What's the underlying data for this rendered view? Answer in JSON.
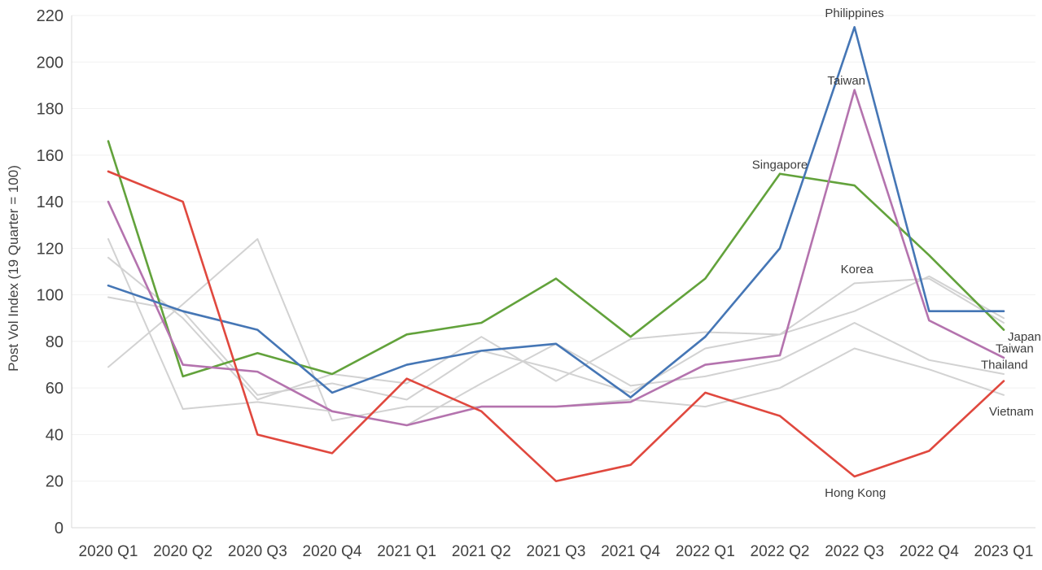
{
  "chart_data": {
    "type": "line",
    "title": "",
    "ylabel": "Post Vol Index (19 Quarter = 100)",
    "xlabel": "",
    "ylim": [
      0,
      227
    ],
    "y_ticks": [
      0,
      20,
      40,
      60,
      80,
      100,
      120,
      140,
      160,
      180,
      200,
      220
    ],
    "grid": "horizontal-faint",
    "legend_position": "none (direct line labels)",
    "categories": [
      "2020 Q1",
      "2020 Q2",
      "2020 Q3",
      "2020 Q4",
      "2021 Q1",
      "2021 Q2",
      "2021 Q3",
      "2021 Q4",
      "2022 Q1",
      "2022 Q2",
      "2022 Q3",
      "2022 Q4",
      "2023 Q1"
    ],
    "series": [
      {
        "name": "Japan",
        "color": "#d2d2d2",
        "emphasis": "background",
        "values": [
          116,
          90,
          55,
          66,
          62,
          82,
          63,
          81,
          84,
          83,
          93,
          108,
          90
        ]
      },
      {
        "name": "Korea",
        "color": "#d2d2d2",
        "emphasis": "background",
        "values": [
          99,
          93,
          57,
          62,
          55,
          76,
          68,
          58,
          77,
          83,
          105,
          107,
          88
        ]
      },
      {
        "name": "Thailand",
        "color": "#d2d2d2",
        "emphasis": "background",
        "values": [
          124,
          51,
          54,
          50,
          44,
          62,
          79,
          61,
          65,
          72,
          88,
          72,
          66
        ]
      },
      {
        "name": "Vietnam",
        "color": "#d2d2d2",
        "emphasis": "background",
        "values": [
          69,
          96,
          124,
          46,
          52,
          52,
          52,
          55,
          52,
          60,
          77,
          68,
          57
        ]
      },
      {
        "name": "Singapore",
        "color": "#62a23b",
        "emphasis": "highlight",
        "values": [
          166,
          65,
          75,
          66,
          83,
          88,
          107,
          82,
          107,
          152,
          147,
          117,
          85
        ]
      },
      {
        "name": "Taiwan",
        "color": "#b473ae",
        "emphasis": "highlight",
        "values": [
          140,
          70,
          67,
          50,
          44,
          52,
          52,
          54,
          70,
          74,
          188,
          89,
          73
        ]
      },
      {
        "name": "Philippines",
        "color": "#4576b5",
        "emphasis": "highlight",
        "values": [
          104,
          93,
          85,
          58,
          70,
          76,
          79,
          56,
          82,
          120,
          215,
          93,
          93
        ]
      },
      {
        "name": "Hong Kong",
        "color": "#e0483e",
        "emphasis": "highlight",
        "values": [
          153,
          140,
          40,
          32,
          64,
          50,
          20,
          27,
          58,
          48,
          22,
          33,
          63
        ]
      }
    ],
    "annotations": [
      {
        "text": "Philippines",
        "quarter_index": 10,
        "value": 221,
        "anchor": "middle",
        "dx": 0
      },
      {
        "text": "Taiwan",
        "quarter_index": 10,
        "value": 192,
        "anchor": "middle",
        "dx": -10
      },
      {
        "text": "Singapore",
        "quarter_index": 9,
        "value": 156,
        "anchor": "middle",
        "dx": 0
      },
      {
        "text": "Korea",
        "quarter_index": 10,
        "value": 111,
        "anchor": "middle",
        "dx": 3
      },
      {
        "text": "Hong Kong",
        "quarter_index": 10,
        "value": 15,
        "anchor": "middle",
        "dx": 1
      },
      {
        "text": "Japan",
        "quarter_index": 12,
        "value": 82,
        "anchor": "start",
        "dx": 5
      },
      {
        "text": "Taiwan",
        "quarter_index": 12,
        "value": 77,
        "anchor": "start",
        "dx": -10
      },
      {
        "text": "Thailand",
        "quarter_index": 12,
        "value": 70,
        "anchor": "start",
        "dx": -28
      },
      {
        "text": "Vietnam",
        "quarter_index": 12,
        "value": 50,
        "anchor": "start",
        "dx": -18
      }
    ],
    "colors": {
      "gridline": "#f1f1f1",
      "axis_line": "#d9d9d9",
      "tick_text": "#414141",
      "annotation_text": "#3c3c3c"
    }
  }
}
